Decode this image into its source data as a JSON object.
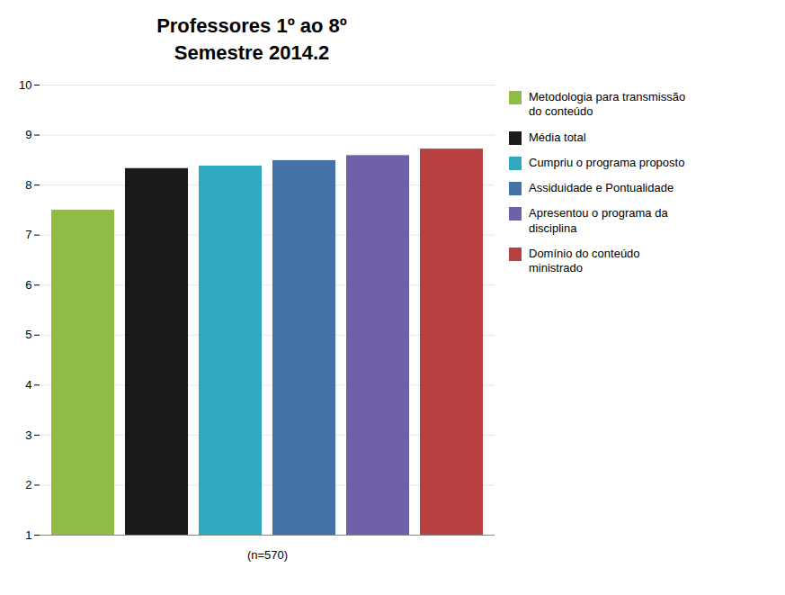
{
  "chart_data": {
    "type": "bar",
    "title": "Professores 1º ao 8º\nSemestre 2014.2",
    "xlabel": "(n=570)",
    "categories": [
      "Metodologia para transmissão\ndo conteúdo",
      "Média total",
      "Cumpriu o programa proposto",
      "Assiduidade e Pontualidade",
      "Apresentou o programa da\ndisciplina",
      "Domínio do conteúdo\nministrado"
    ],
    "values": [
      7.5,
      8.33,
      8.38,
      8.49,
      8.59,
      8.72
    ],
    "colors": [
      "#8fbc45",
      "#1a1a1a",
      "#30a8c0",
      "#4472a8",
      "#7060a8",
      "#b84040"
    ],
    "ylim": [
      1,
      10
    ],
    "yticks": [
      1,
      2,
      3,
      4,
      5,
      6,
      7,
      8,
      9,
      10
    ],
    "grid": true,
    "legend": "right",
    "tick_labels": "y"
  }
}
